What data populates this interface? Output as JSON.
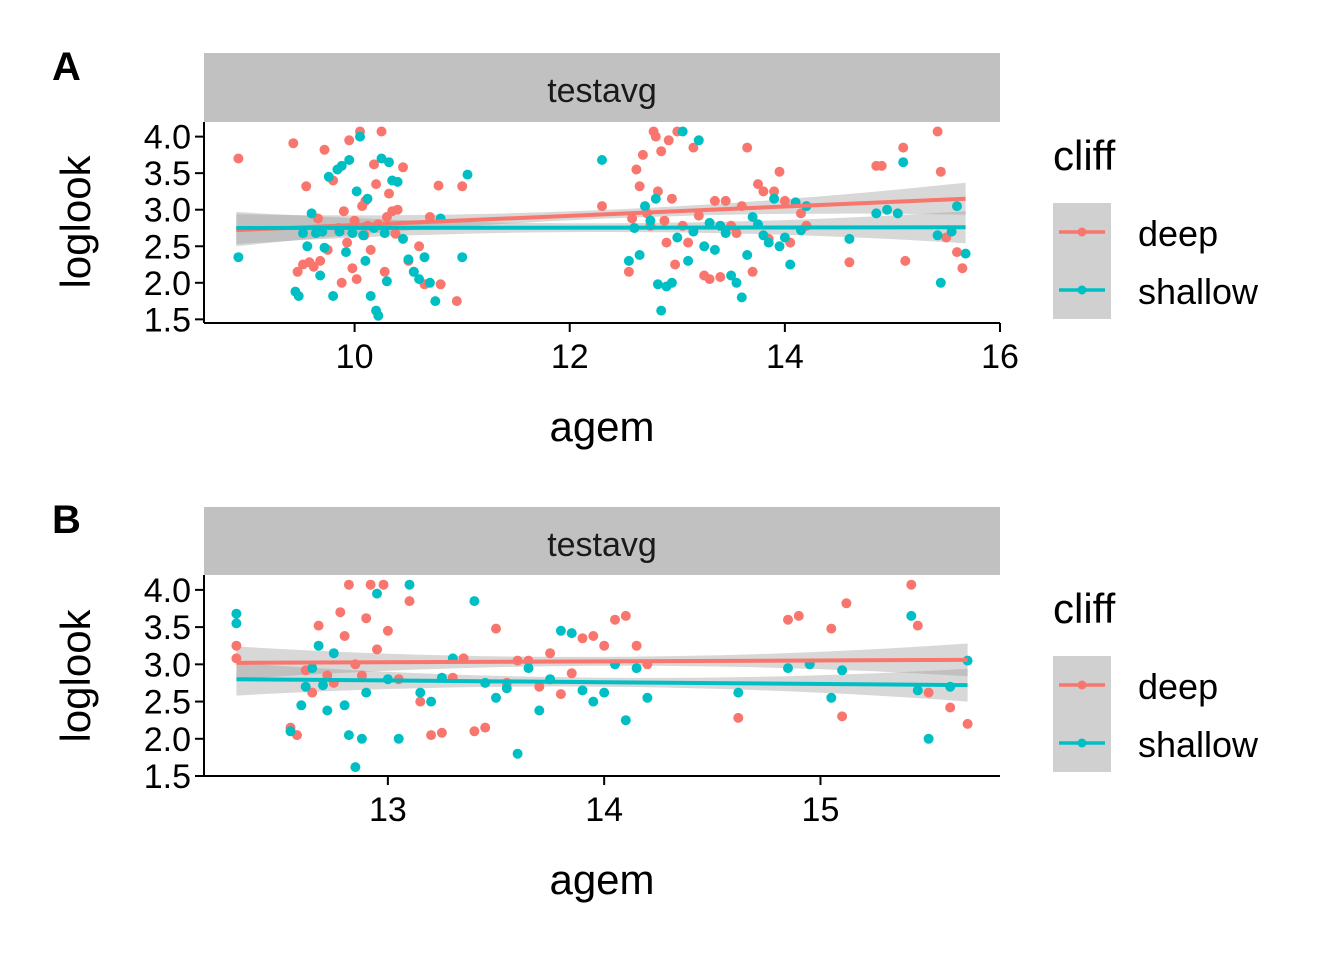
{
  "chart_data": [
    {
      "panel": "A",
      "type": "scatter",
      "strip": "testavg",
      "xlabel": "agem",
      "ylabel": "loglook",
      "xlim": [
        8.6,
        16.0
      ],
      "ylim": [
        1.45,
        4.2
      ],
      "xticks": [
        10,
        12,
        14,
        16
      ],
      "yticks": [
        1.5,
        2.0,
        2.5,
        3.0,
        3.5,
        4.0
      ],
      "ytick_labels": [
        "1.5",
        "2.0",
        "2.5",
        "3.0",
        "3.5",
        "4.0"
      ],
      "legend": {
        "title": "cliff",
        "entries": [
          "deep",
          "shallow"
        ],
        "position": "right"
      },
      "series": [
        {
          "name": "deep",
          "color": "#F8766D",
          "x": [
            8.92,
            9.43,
            9.47,
            9.52,
            9.55,
            9.58,
            9.62,
            9.66,
            9.68,
            9.72,
            9.75,
            9.8,
            9.85,
            9.88,
            9.9,
            9.93,
            9.95,
            9.98,
            10.0,
            10.02,
            10.05,
            10.07,
            10.09,
            10.1,
            10.12,
            10.15,
            10.18,
            10.2,
            10.22,
            10.25,
            10.28,
            10.3,
            10.32,
            10.35,
            10.38,
            10.4,
            10.45,
            10.5,
            10.55,
            10.6,
            10.65,
            10.7,
            10.78,
            10.8,
            10.95,
            11.0,
            12.3,
            12.55,
            12.58,
            12.62,
            12.65,
            12.68,
            12.72,
            12.75,
            12.78,
            12.8,
            12.82,
            12.85,
            12.88,
            12.9,
            12.92,
            12.95,
            12.98,
            13.0,
            13.05,
            13.1,
            13.15,
            13.2,
            13.25,
            13.3,
            13.35,
            13.4,
            13.45,
            13.5,
            13.55,
            13.6,
            13.65,
            13.7,
            13.75,
            13.8,
            13.85,
            13.9,
            13.95,
            14.0,
            14.05,
            14.1,
            14.15,
            14.2,
            14.6,
            14.85,
            14.9,
            15.1,
            15.12,
            15.42,
            15.45,
            15.5,
            15.6,
            15.65
          ],
          "y": [
            3.7,
            3.91,
            2.15,
            2.25,
            3.32,
            2.28,
            2.22,
            2.88,
            2.3,
            3.82,
            2.45,
            3.4,
            2.75,
            2.0,
            2.98,
            2.55,
            3.95,
            2.2,
            2.85,
            2.05,
            4.07,
            3.05,
            2.65,
            3.12,
            2.78,
            2.45,
            3.62,
            3.35,
            2.8,
            4.07,
            2.15,
            2.9,
            3.22,
            2.98,
            2.67,
            3.0,
            3.58,
            2.3,
            2.15,
            2.5,
            1.98,
            2.9,
            3.33,
            1.98,
            1.75,
            3.32,
            3.05,
            2.15,
            2.88,
            3.55,
            3.32,
            3.75,
            2.95,
            2.78,
            4.07,
            4.0,
            3.25,
            3.8,
            2.85,
            2.55,
            3.95,
            3.15,
            2.25,
            4.07,
            2.78,
            2.55,
            3.85,
            2.92,
            2.1,
            2.05,
            3.12,
            2.08,
            3.12,
            2.78,
            2.68,
            3.05,
            3.85,
            2.15,
            3.35,
            3.25,
            2.6,
            3.25,
            3.52,
            3.12,
            2.55,
            3.1,
            2.95,
            2.78,
            2.28,
            3.6,
            3.6,
            3.85,
            2.3,
            4.07,
            3.52,
            2.62,
            2.42,
            2.2
          ]
        },
        {
          "name": "shallow",
          "color": "#00BFC4",
          "x": [
            8.92,
            9.45,
            9.48,
            9.52,
            9.56,
            9.6,
            9.64,
            9.68,
            9.7,
            9.72,
            9.76,
            9.8,
            9.84,
            9.86,
            9.88,
            9.92,
            9.95,
            9.98,
            10.02,
            10.05,
            10.08,
            10.1,
            10.12,
            10.15,
            10.18,
            10.2,
            10.22,
            10.25,
            10.28,
            10.3,
            10.32,
            10.35,
            10.4,
            10.45,
            10.5,
            10.55,
            10.6,
            10.65,
            10.7,
            10.75,
            10.8,
            11.0,
            11.05,
            12.3,
            12.55,
            12.6,
            12.65,
            12.7,
            12.75,
            12.8,
            12.82,
            12.85,
            12.9,
            12.95,
            13.0,
            13.05,
            13.1,
            13.15,
            13.2,
            13.25,
            13.3,
            13.35,
            13.4,
            13.45,
            13.5,
            13.55,
            13.6,
            13.65,
            13.7,
            13.75,
            13.8,
            13.85,
            13.9,
            13.95,
            14.0,
            14.05,
            14.1,
            14.15,
            14.2,
            14.6,
            14.85,
            14.95,
            15.05,
            15.1,
            15.42,
            15.45,
            15.55,
            15.6,
            15.68
          ],
          "y": [
            2.35,
            1.88,
            1.82,
            2.68,
            2.5,
            2.95,
            2.68,
            2.1,
            2.7,
            2.48,
            3.45,
            1.82,
            3.55,
            2.7,
            3.6,
            2.42,
            3.68,
            2.68,
            3.25,
            4.0,
            2.65,
            2.3,
            3.15,
            1.82,
            2.75,
            1.62,
            1.55,
            3.7,
            2.68,
            2.02,
            3.65,
            3.4,
            3.38,
            2.6,
            2.32,
            2.15,
            2.05,
            2.35,
            2.0,
            1.75,
            2.88,
            2.35,
            3.48,
            3.68,
            2.3,
            2.75,
            2.38,
            3.05,
            2.85,
            3.15,
            1.98,
            1.62,
            1.95,
            2.0,
            2.62,
            4.07,
            2.3,
            2.7,
            3.95,
            2.5,
            2.82,
            2.45,
            2.78,
            2.68,
            2.1,
            2.0,
            1.8,
            2.38,
            2.9,
            2.8,
            2.65,
            2.55,
            3.15,
            2.5,
            2.62,
            2.25,
            3.1,
            2.72,
            3.05,
            2.6,
            2.95,
            3.0,
            2.95,
            3.65,
            2.65,
            2.0,
            2.7,
            3.05,
            2.4
          ]
        }
      ],
      "fits": [
        {
          "name": "deep",
          "x": [
            8.9,
            15.68
          ],
          "y": [
            2.72,
            3.15
          ]
        },
        {
          "name": "shallow",
          "x": [
            8.9,
            15.68
          ],
          "y": [
            2.75,
            2.76
          ]
        }
      ]
    },
    {
      "panel": "B",
      "type": "scatter",
      "strip": "testavg",
      "xlabel": "agem",
      "ylabel": "loglook",
      "xlim": [
        12.15,
        15.83
      ],
      "ylim": [
        1.5,
        4.2
      ],
      "xticks": [
        13,
        14,
        15
      ],
      "yticks": [
        1.5,
        2.0,
        2.5,
        3.0,
        3.5,
        4.0
      ],
      "ytick_labels": [
        "1.5",
        "2.0",
        "2.5",
        "3.0",
        "3.5",
        "4.0"
      ],
      "legend": {
        "title": "cliff",
        "entries": [
          "deep",
          "shallow"
        ],
        "position": "right"
      },
      "series": [
        {
          "name": "deep",
          "color": "#F8766D",
          "x": [
            12.3,
            12.3,
            12.55,
            12.58,
            12.62,
            12.65,
            12.68,
            12.72,
            12.75,
            12.78,
            12.8,
            12.82,
            12.85,
            12.88,
            12.9,
            12.92,
            12.95,
            12.98,
            13.0,
            13.05,
            13.1,
            13.15,
            13.2,
            13.25,
            13.3,
            13.35,
            13.4,
            13.45,
            13.5,
            13.55,
            13.6,
            13.65,
            13.7,
            13.75,
            13.8,
            13.85,
            13.9,
            13.95,
            14.0,
            14.05,
            14.1,
            14.15,
            14.2,
            14.62,
            14.85,
            14.9,
            15.05,
            15.1,
            15.12,
            15.42,
            15.45,
            15.5,
            15.6,
            15.68
          ],
          "y": [
            3.25,
            3.08,
            2.15,
            2.05,
            2.92,
            2.62,
            3.52,
            2.85,
            2.75,
            3.7,
            3.38,
            4.07,
            3.0,
            2.85,
            3.62,
            4.07,
            3.2,
            4.07,
            3.45,
            2.8,
            3.85,
            2.5,
            2.05,
            2.08,
            2.82,
            3.08,
            2.1,
            2.15,
            3.48,
            2.75,
            3.05,
            3.05,
            2.7,
            3.15,
            2.6,
            2.88,
            3.35,
            3.38,
            3.25,
            3.6,
            3.65,
            3.25,
            3.0,
            2.28,
            3.6,
            3.65,
            3.48,
            2.3,
            3.82,
            4.07,
            3.52,
            2.62,
            2.42,
            2.2
          ]
        },
        {
          "name": "shallow",
          "color": "#00BFC4",
          "x": [
            12.3,
            12.3,
            12.55,
            12.6,
            12.62,
            12.65,
            12.68,
            12.7,
            12.72,
            12.75,
            12.8,
            12.82,
            12.85,
            12.88,
            12.9,
            12.95,
            13.0,
            13.05,
            13.1,
            13.15,
            13.2,
            13.25,
            13.3,
            13.4,
            13.45,
            13.5,
            13.55,
            13.6,
            13.65,
            13.7,
            13.75,
            13.8,
            13.85,
            13.9,
            13.95,
            14.0,
            14.05,
            14.1,
            14.15,
            14.2,
            14.62,
            14.85,
            14.95,
            15.05,
            15.1,
            15.42,
            15.45,
            15.5,
            15.6,
            15.68
          ],
          "y": [
            3.68,
            3.55,
            2.1,
            2.45,
            2.7,
            2.95,
            3.25,
            2.72,
            2.38,
            3.15,
            2.45,
            2.05,
            1.62,
            2.0,
            2.62,
            3.95,
            2.8,
            2.0,
            4.07,
            2.62,
            2.5,
            2.82,
            3.08,
            3.85,
            2.75,
            2.55,
            2.68,
            1.8,
            2.95,
            2.38,
            2.8,
            3.45,
            3.42,
            2.65,
            2.5,
            2.62,
            3.0,
            2.25,
            2.95,
            2.55,
            2.62,
            2.95,
            3.0,
            2.55,
            2.92,
            3.65,
            2.65,
            2.0,
            2.7,
            3.05
          ]
        }
      ],
      "fits": [
        {
          "name": "deep",
          "x": [
            12.3,
            15.68
          ],
          "y": [
            3.02,
            3.06
          ]
        },
        {
          "name": "shallow",
          "x": [
            12.3,
            15.68
          ],
          "y": [
            2.8,
            2.72
          ]
        }
      ]
    }
  ],
  "panels": [
    {
      "letter": "A",
      "strip": "testavg",
      "xlabel": "agem",
      "ylabel": "loglook"
    },
    {
      "letter": "B",
      "strip": "testavg",
      "xlabel": "agem",
      "ylabel": "loglook"
    }
  ],
  "legend": {
    "title": "cliff",
    "deep": "deep",
    "shallow": "shallow"
  },
  "colors": {
    "deep": "#F8766D",
    "shallow": "#00BFC4",
    "strip_bg": "#C1C1C1",
    "ci_band": "#999999",
    "legend_key_bg": "#D0D0D0"
  }
}
